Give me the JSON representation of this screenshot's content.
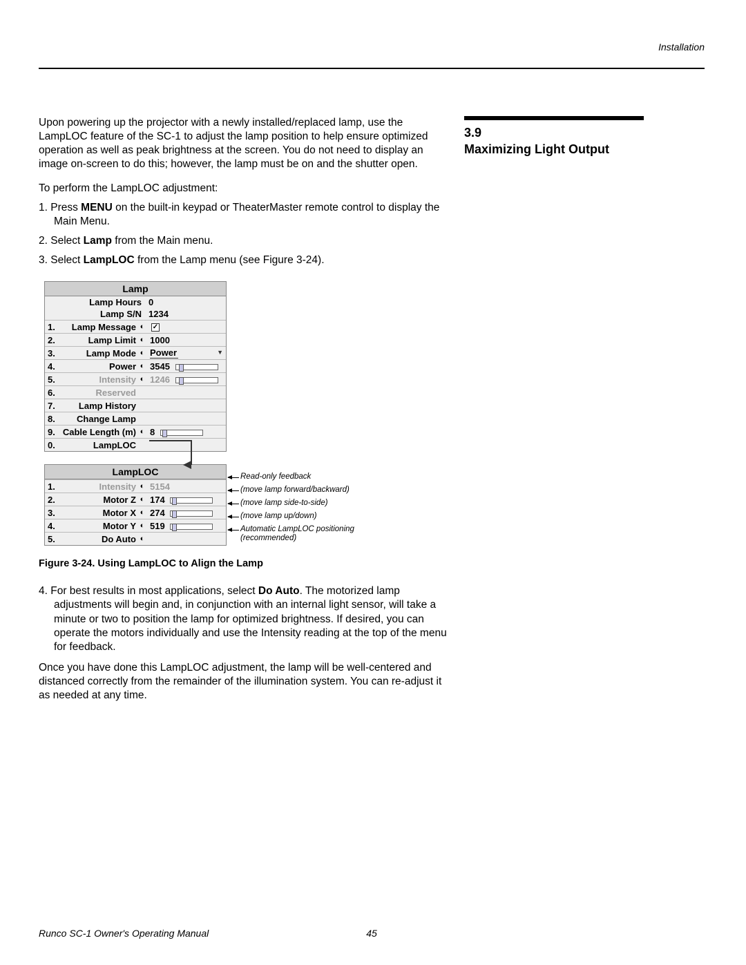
{
  "header": {
    "section": "Installation"
  },
  "sidebar": {
    "number": "3.9",
    "title": "Maximizing Light Output"
  },
  "body": {
    "intro": "Upon powering up the projector with a newly installed/replaced lamp, use the LampLOC feature of the SC-1 to adjust the lamp position to help ensure optimized operation as well as peak brightness at the screen. You do not need to display an image on-screen to do this; however, the lamp must be on and the shutter open.",
    "lead": "To perform the LampLOC adjustment:",
    "step1a": "1. Press ",
    "step1b": "MENU",
    "step1c": " on the built-in keypad or TheaterMaster remote control to display the Main Menu.",
    "step2a": "2. Select ",
    "step2b": "Lamp",
    "step2c": " from the Main menu.",
    "step3a": "3. Select ",
    "step3b": "LampLOC",
    "step3c": " from the Lamp menu (see Figure 3-24).",
    "step4a": "4. For best results in most applications, select ",
    "step4b": "Do Auto",
    "step4c": ". The motorized lamp adjustments will begin and, in conjunction with an internal light sensor, will take a minute or two to position the lamp for optimized brightness. If desired, you can operate the motors individually and use the Intensity reading at the top of the menu for feedback.",
    "outro": "Once you have done this LampLOC adjustment, the lamp will be well-centered and distanced correctly from the remainder of the illumination system. You can re-adjust it as needed at any time."
  },
  "figure": {
    "caption": "Figure 3-24. Using LampLOC to Align the Lamp",
    "lampMenu": {
      "title": "Lamp",
      "hoursLabel": "Lamp Hours",
      "hoursVal": "0",
      "snLabel": "Lamp S/N",
      "snVal": "1234",
      "rows": [
        {
          "n": "1.",
          "lbl": "Lamp Message",
          "val": "",
          "kind": "check",
          "dim": false
        },
        {
          "n": "2.",
          "lbl": "Lamp Limit",
          "val": "1000",
          "kind": "text",
          "dim": false
        },
        {
          "n": "3.",
          "lbl": "Lamp Mode",
          "val": "Power",
          "kind": "dropdown",
          "dim": false
        },
        {
          "n": "4.",
          "lbl": "Power",
          "val": "3545",
          "kind": "slider",
          "dim": false,
          "thumb": 4
        },
        {
          "n": "5.",
          "lbl": "Intensity",
          "val": "1246",
          "kind": "slider",
          "dim": true,
          "thumb": 4
        },
        {
          "n": "6.",
          "lbl": "Reserved",
          "val": "",
          "kind": "text",
          "dim": true
        },
        {
          "n": "7.",
          "lbl": "Lamp History",
          "val": "",
          "kind": "text",
          "dim": false
        },
        {
          "n": "8.",
          "lbl": "Change Lamp",
          "val": "",
          "kind": "text",
          "dim": false
        },
        {
          "n": "9.",
          "lbl": "Cable Length (m)",
          "val": "8",
          "kind": "slider",
          "dim": false,
          "thumb": 2
        },
        {
          "n": "0.",
          "lbl": "LampLOC",
          "val": "",
          "kind": "text",
          "dim": false
        }
      ]
    },
    "locMenu": {
      "title": "LampLOC",
      "rows": [
        {
          "n": "1.",
          "lbl": "Intensity",
          "val": "5154",
          "kind": "text",
          "dim": true,
          "annot": "Read-only feedback"
        },
        {
          "n": "2.",
          "lbl": "Motor Z",
          "val": "174",
          "kind": "slider",
          "dim": false,
          "thumb": 2,
          "annot": "(move lamp forward/backward)"
        },
        {
          "n": "3.",
          "lbl": "Motor X",
          "val": "274",
          "kind": "slider",
          "dim": false,
          "thumb": 2,
          "annot": "(move lamp side-to-side)"
        },
        {
          "n": "4.",
          "lbl": "Motor Y",
          "val": "519",
          "kind": "slider",
          "dim": false,
          "thumb": 2,
          "annot": "(move lamp up/down)"
        },
        {
          "n": "5.",
          "lbl": "Do Auto",
          "val": "",
          "kind": "text",
          "dim": false,
          "annot": "Automatic LampLOC positioning (recommended)"
        }
      ]
    }
  },
  "footer": {
    "doc": "Runco SC-1 Owner's Operating Manual",
    "page": "45"
  }
}
